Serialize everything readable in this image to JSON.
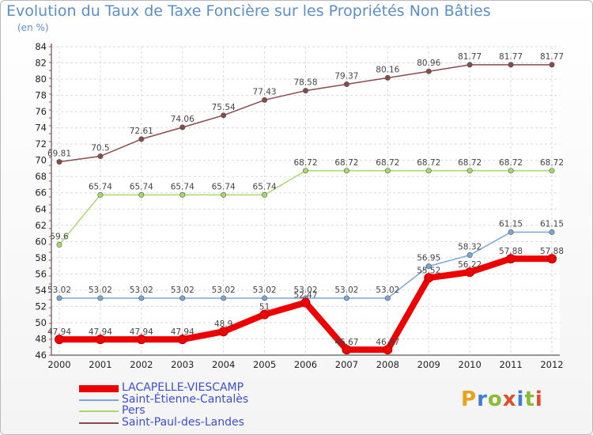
{
  "title": "Evolution du Taux de Taxe Foncière sur les Propriétés Non Bâties",
  "unit_label": "(en %)",
  "logo": {
    "text": "Proxiti",
    "colors": [
      "#e9a21b",
      "#3d7fcf",
      "#8bbb35",
      "#e04c2d",
      "#3d7fcf",
      "#8bbb35",
      "#e04c2d"
    ]
  },
  "chart_data": {
    "type": "line",
    "title": "Evolution du Taux de Taxe Foncière sur les Propriétés Non Bâties",
    "ylabel": "(en %)",
    "xlabel": "",
    "x": [
      "2000",
      "2001",
      "2002",
      "2003",
      "2004",
      "2005",
      "2006",
      "2007",
      "2008",
      "2009",
      "2010",
      "2011",
      "2012"
    ],
    "ylim": [
      46,
      84
    ],
    "yticks": [
      46,
      48,
      50,
      52,
      54,
      56,
      58,
      60,
      62,
      64,
      66,
      68,
      70,
      72,
      74,
      76,
      78,
      80,
      82,
      84
    ],
    "grid": true,
    "legend_position": "bottom-left",
    "series": [
      {
        "name": "LACAPELLE-VIESCAMP",
        "color": "#ee0000",
        "width": 8,
        "values": [
          47.94,
          47.94,
          47.94,
          47.94,
          48.9,
          51,
          52.47,
          46.67,
          46.67,
          55.52,
          56.22,
          57.88,
          57.88
        ],
        "labels": [
          "47.94",
          "47.94",
          "47.94",
          "47.94",
          "48.9",
          "51",
          "52.47",
          "46.67",
          "46.67",
          "55.52",
          "56.22",
          "57.88",
          "57.88"
        ]
      },
      {
        "name": "Saint-Étienne-Cantalès",
        "color": "#7aa6d6",
        "width": 1.5,
        "values": [
          53.02,
          53.02,
          53.02,
          53.02,
          53.02,
          53.02,
          53.02,
          53.02,
          53.02,
          56.95,
          58.32,
          61.15,
          61.15
        ],
        "labels": [
          "53.02",
          "53.02",
          "53.02",
          "53.02",
          "53.02",
          "53.02",
          "53.02",
          "53.02",
          "53.02",
          "56.95",
          "58.32",
          "61.15",
          "61.15"
        ]
      },
      {
        "name": "Pers",
        "color": "#a6d96a",
        "width": 1.5,
        "values": [
          59.6,
          65.74,
          65.74,
          65.74,
          65.74,
          65.74,
          68.72,
          68.72,
          68.72,
          68.72,
          68.72,
          68.72,
          68.72
        ],
        "labels": [
          "59.6",
          "65.74",
          "65.74",
          "65.74",
          "65.74",
          "65.74",
          "68.72",
          "68.72",
          "68.72",
          "68.72",
          "68.72",
          "68.72",
          "68.72"
        ]
      },
      {
        "name": "Saint-Paul-des-Landes",
        "color": "#8b4a4a",
        "width": 1.5,
        "values": [
          69.81,
          70.5,
          72.61,
          74.06,
          75.54,
          77.43,
          78.58,
          79.37,
          80.16,
          80.96,
          81.77,
          81.77,
          81.77
        ],
        "labels": [
          "69.81",
          "70.5",
          "72.61",
          "74.06",
          "75.54",
          "77.43",
          "78.58",
          "79.37",
          "80.16",
          "80.96",
          "81.77",
          "81.77",
          "81.77"
        ]
      }
    ]
  }
}
